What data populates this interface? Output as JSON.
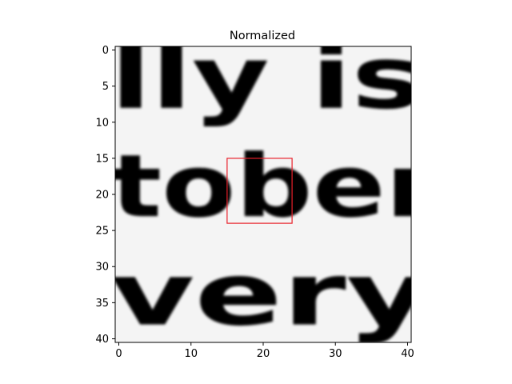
{
  "figure": {
    "title": "Normalized",
    "image": {
      "rows": 41,
      "cols": 41,
      "colormap": "gray",
      "text_lines": [
        {
          "text": "lly is",
          "row": 8
        },
        {
          "text": "tober",
          "row": 23
        },
        {
          "text": "very",
          "row": 38
        }
      ]
    },
    "x_ticks": [
      "0",
      "10",
      "20",
      "30",
      "40"
    ],
    "y_ticks": [
      "0",
      "5",
      "10",
      "15",
      "20",
      "25",
      "30",
      "35",
      "40"
    ],
    "highlight_box": {
      "x0": 15,
      "y0": 15,
      "x1": 24,
      "y1": 24,
      "color": "#e8202a"
    }
  }
}
